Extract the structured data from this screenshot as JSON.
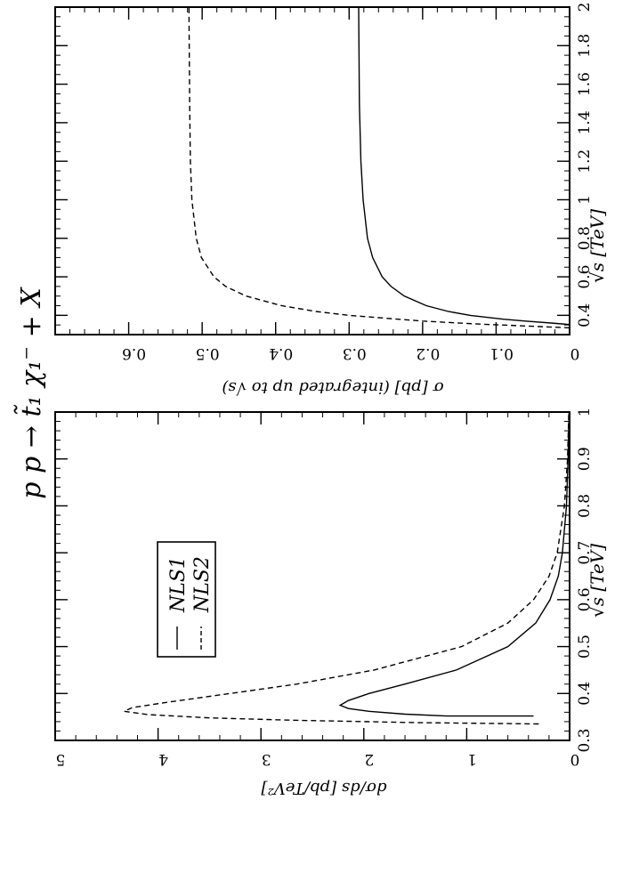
{
  "figure": {
    "title": "p p → t̃₁ χ₁⁻ + X",
    "orientation": "rotated-90-clockwise"
  },
  "chart_data": [
    {
      "type": "line",
      "xlabel": "√s  [TeV]",
      "ylabel": "σ [pb] (integrated up to √s)",
      "xlim": [
        0.3,
        2.0
      ],
      "ylim": [
        0,
        0.7
      ],
      "xticks": [
        "0.4",
        "0.6",
        "0.8",
        "1",
        "1.2",
        "1.4",
        "1.6",
        "1.8",
        "2"
      ],
      "yticks": [
        "0",
        "0.1",
        "0.2",
        "0.3",
        "0.4",
        "0.5",
        "0.6"
      ],
      "series": [
        {
          "name": "NLS1",
          "style": "solid",
          "x": [
            0.352,
            0.36,
            0.37,
            0.38,
            0.4,
            0.42,
            0.45,
            0.5,
            0.55,
            0.6,
            0.7,
            0.8,
            1.0,
            1.2,
            1.5,
            2.0
          ],
          "y": [
            0.0,
            0.025,
            0.06,
            0.09,
            0.135,
            0.165,
            0.195,
            0.225,
            0.243,
            0.255,
            0.268,
            0.275,
            0.281,
            0.284,
            0.286,
            0.287
          ]
        },
        {
          "name": "NLS2",
          "style": "dashed",
          "x": [
            0.335,
            0.345,
            0.355,
            0.37,
            0.4,
            0.42,
            0.45,
            0.5,
            0.55,
            0.6,
            0.7,
            0.8,
            1.0,
            1.2,
            1.5,
            2.0
          ],
          "y": [
            0.0,
            0.06,
            0.125,
            0.2,
            0.3,
            0.345,
            0.392,
            0.44,
            0.468,
            0.484,
            0.501,
            0.508,
            0.514,
            0.516,
            0.517,
            0.518
          ]
        }
      ]
    },
    {
      "type": "line",
      "xlabel": "√s  [TeV]",
      "ylabel": "dσ/ds [pb/TeV²]",
      "xlim": [
        0.3,
        1.0
      ],
      "ylim": [
        0,
        5
      ],
      "xticks": [
        "0.3",
        "0.4",
        "0.5",
        "0.6",
        "0.7",
        "0.8",
        "0.9",
        "1"
      ],
      "yticks": [
        "0",
        "1",
        "2",
        "3",
        "4",
        "5"
      ],
      "legend": {
        "position": "top-left",
        "entries": [
          "NLS1",
          "NLS2"
        ]
      },
      "series": [
        {
          "name": "NLS1",
          "style": "solid",
          "x": [
            0.352,
            0.352,
            0.356,
            0.362,
            0.368,
            0.375,
            0.385,
            0.4,
            0.42,
            0.45,
            0.5,
            0.55,
            0.6,
            0.65,
            0.7,
            0.8,
            0.9,
            1.0
          ],
          "y": [
            0.35,
            1.2,
            1.6,
            1.95,
            2.15,
            2.23,
            2.15,
            1.95,
            1.6,
            1.1,
            0.6,
            0.33,
            0.19,
            0.11,
            0.07,
            0.03,
            0.015,
            0.005
          ]
        },
        {
          "name": "NLS2",
          "style": "dashed",
          "x": [
            0.335,
            0.338,
            0.343,
            0.348,
            0.355,
            0.362,
            0.37,
            0.38,
            0.4,
            0.42,
            0.45,
            0.5,
            0.55,
            0.6,
            0.65,
            0.7,
            0.8,
            0.9,
            1.0
          ],
          "y": [
            0.3,
            1.5,
            2.7,
            3.5,
            4.1,
            4.33,
            4.25,
            3.95,
            3.3,
            2.65,
            1.9,
            1.05,
            0.6,
            0.35,
            0.2,
            0.12,
            0.05,
            0.02,
            0.008
          ]
        }
      ]
    }
  ]
}
